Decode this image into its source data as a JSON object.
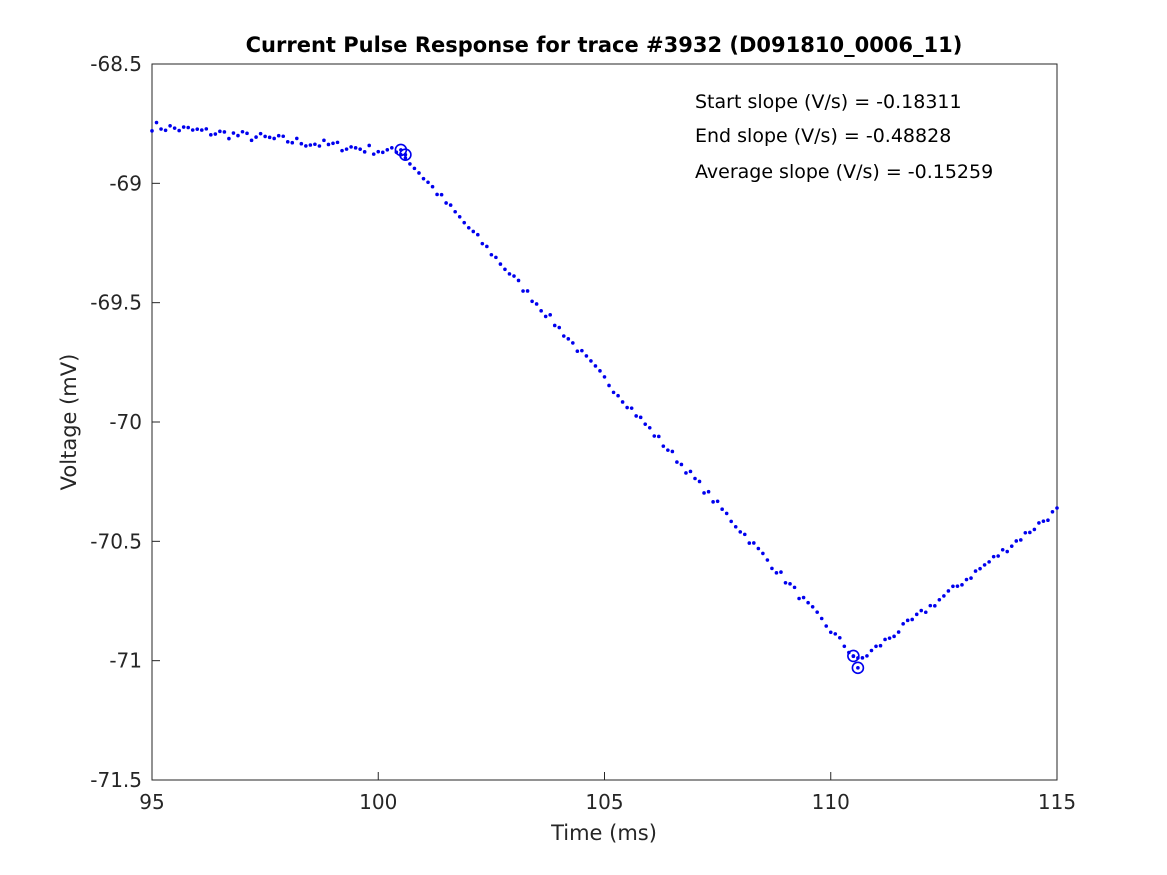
{
  "chart_data": {
    "type": "scatter",
    "title": "Current Pulse Response for trace #3932 (D091810_0006_11)",
    "xlabel": "Time (ms)",
    "ylabel": "Voltage (mV)",
    "xlim": [
      95,
      115
    ],
    "ylim": [
      -71.5,
      -68.5
    ],
    "xticks": [
      "95",
      "100",
      "105",
      "110",
      "115"
    ],
    "yticks": [
      "-68.5",
      "-69",
      "-69.5",
      "-70",
      "-70.5",
      "-71",
      "-71.5"
    ],
    "grid": false,
    "colors": {
      "series": "#0000ee",
      "axis": "#262626"
    },
    "annotations": [
      "Start slope (V/s) = -0.18311",
      "End slope (V/s) = -0.48828",
      "Average slope (V/s) = -0.15259"
    ],
    "segments": [
      {
        "x_start": 95.0,
        "x_end": 100.4,
        "y_start": -68.76,
        "y_end": -68.87,
        "noise": 0.02
      },
      {
        "x_start": 100.5,
        "x_end": 110.6,
        "y_start": -68.87,
        "y_end": -71.0,
        "noise": 0.015
      },
      {
        "x_start": 110.7,
        "x_end": 115.0,
        "y_start": -70.99,
        "y_end": -70.37,
        "noise": 0.015
      }
    ],
    "marked_points": [
      {
        "x": 100.5,
        "y": -68.86
      },
      {
        "x": 100.6,
        "y": -68.88
      },
      {
        "x": 110.5,
        "y": -70.98
      },
      {
        "x": 110.6,
        "y": -71.03
      }
    ]
  }
}
